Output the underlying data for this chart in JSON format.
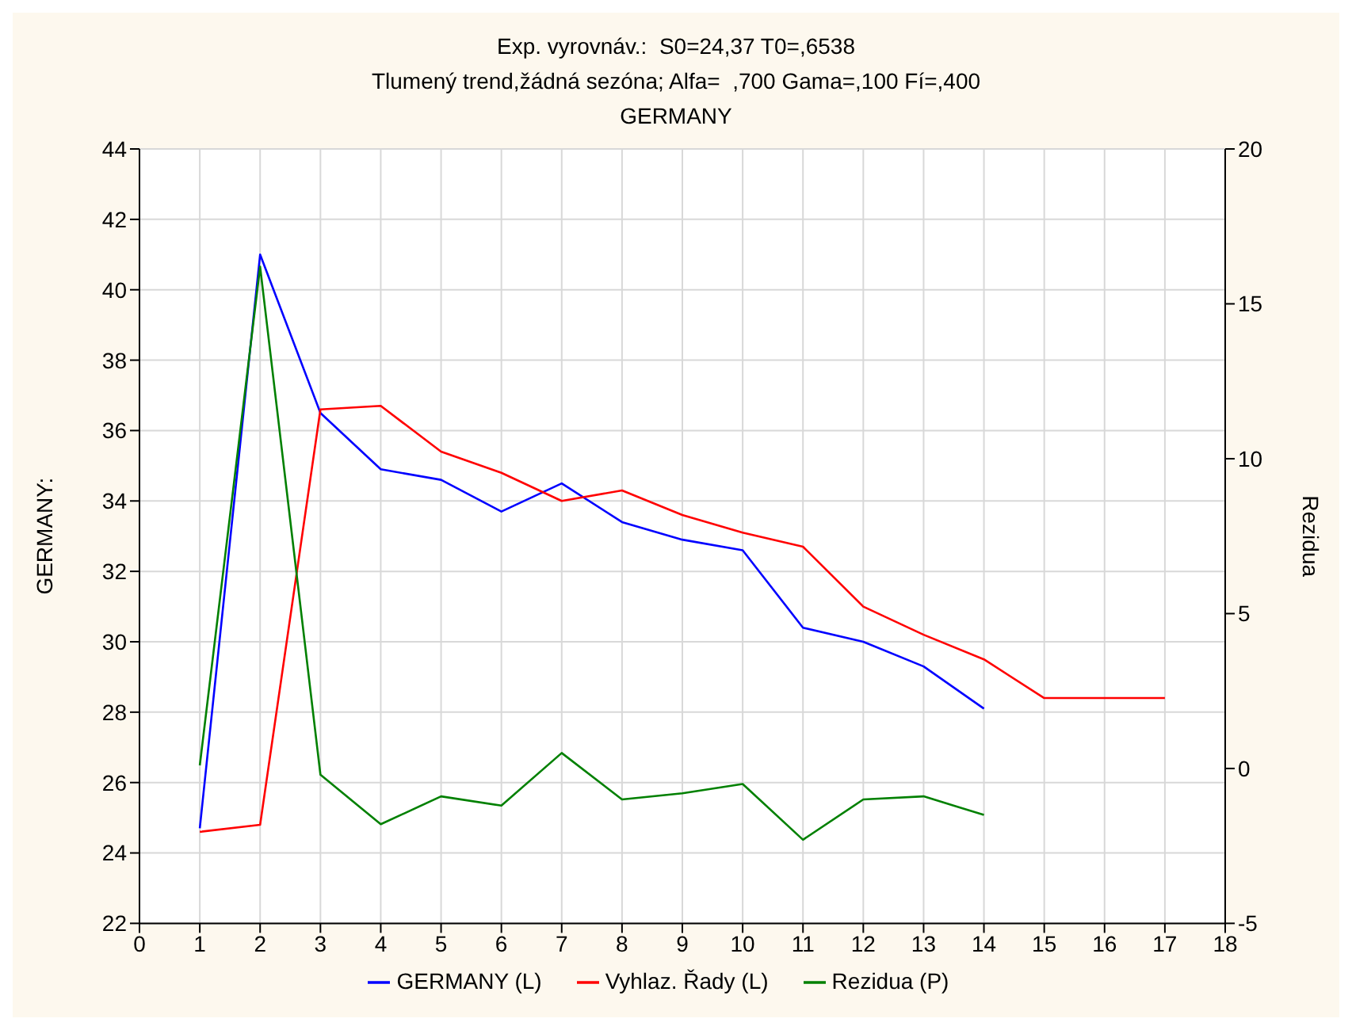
{
  "chart_data": {
    "type": "line",
    "title": "Exp. vyrovnáv.:  S0=24,37 T0=,6538\nTlumený trend,žádná sezóna; Alfa=  ,700 Gama=,100 Fí=,400",
    "subtitle": "GERMANY",
    "ylabel": "GERMANY:",
    "y2label": "Rezidua",
    "x": [
      1,
      2,
      3,
      4,
      5,
      6,
      7,
      8,
      9,
      10,
      11,
      12,
      13,
      14,
      15,
      16,
      17
    ],
    "series": [
      {
        "name": "GERMANY (L)",
        "color": "#0000ff",
        "values": [
          24.7,
          41.0,
          36.5,
          34.9,
          34.6,
          33.7,
          34.5,
          33.4,
          32.9,
          32.6,
          30.4,
          30.0,
          29.3,
          28.1,
          null,
          null,
          null
        ]
      },
      {
        "name": "Vyhlaz. Řady (L)",
        "color": "#ff0000",
        "values": [
          24.6,
          24.8,
          36.6,
          36.7,
          35.4,
          34.8,
          34.0,
          34.3,
          33.6,
          33.1,
          32.7,
          31.0,
          30.2,
          29.5,
          28.4,
          28.4,
          28.4
        ]
      },
      {
        "name": "Rezidua (P)",
        "color": "#008000",
        "axis": "y2",
        "values": [
          0.1,
          16.2,
          -0.2,
          -1.8,
          -0.9,
          -1.2,
          0.5,
          -1.0,
          -0.8,
          -0.5,
          -2.3,
          -1.0,
          -0.9,
          -1.5,
          null,
          null,
          null
        ]
      }
    ],
    "xlim": [
      0,
      18
    ],
    "xticks": [
      0,
      1,
      2,
      3,
      4,
      5,
      6,
      7,
      8,
      9,
      10,
      11,
      12,
      13,
      14,
      15,
      16,
      17,
      18
    ],
    "ylim": [
      22,
      44
    ],
    "yticks": [
      22,
      24,
      26,
      28,
      30,
      32,
      34,
      36,
      38,
      40,
      42,
      44
    ],
    "y2lim": [
      -5,
      20
    ],
    "y2ticks": [
      -5,
      0,
      5,
      10,
      15,
      20
    ],
    "grid": true,
    "legend": "bottom",
    "marker": "none",
    "line_style": "solid"
  }
}
